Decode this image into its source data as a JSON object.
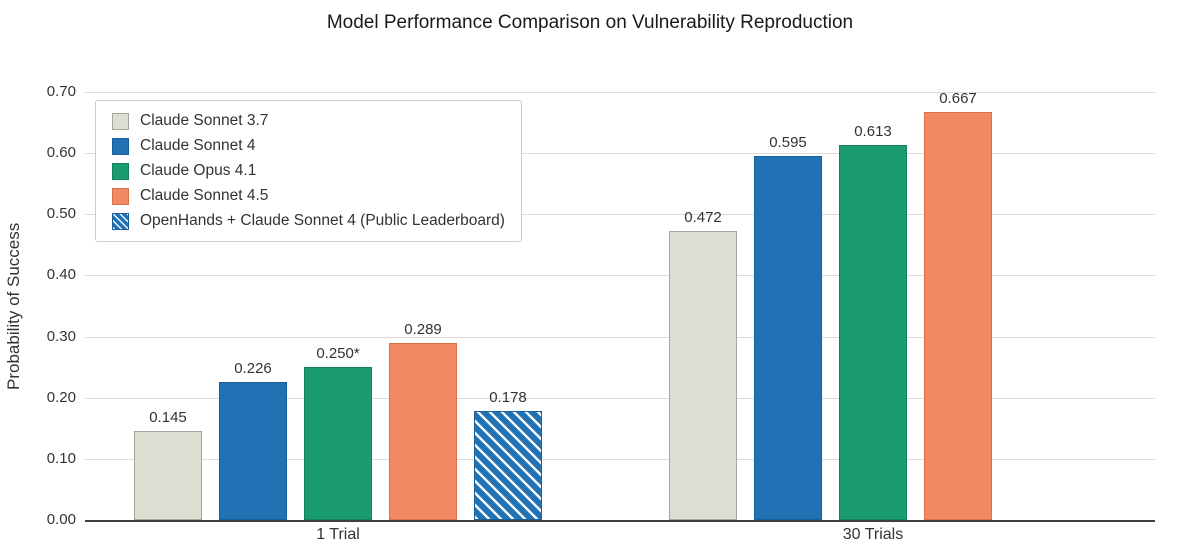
{
  "title": "Model Performance Comparison on Vulnerability Reproduction",
  "ylabel": "Probability of Success",
  "chart_data": {
    "type": "bar",
    "categories": [
      "1 Trial",
      "30 Trials"
    ],
    "yticks": [
      "0.00",
      "0.10",
      "0.20",
      "0.30",
      "0.40",
      "0.50",
      "0.60",
      "0.70"
    ],
    "ylim": [
      0,
      0.7
    ],
    "grid": true,
    "legend_position": "upper left",
    "series": [
      {
        "name": "Claude Sonnet 3.7",
        "color": "#ddddd2",
        "edge": "#a6a69a",
        "hatch": false,
        "values": [
          0.145,
          0.472
        ],
        "labels": [
          "0.145",
          "0.472"
        ]
      },
      {
        "name": "Claude Sonnet 4",
        "color": "#2171b5",
        "edge": "#1b5f99",
        "hatch": false,
        "values": [
          0.226,
          0.595
        ],
        "labels": [
          "0.226",
          "0.595"
        ]
      },
      {
        "name": "Claude Opus 4.1",
        "color": "#1a9c6e",
        "edge": "#15835c",
        "hatch": false,
        "values": [
          0.25,
          0.613
        ],
        "labels": [
          "0.250*",
          "0.613"
        ]
      },
      {
        "name": "Claude Sonnet 4.5",
        "color": "#f08a62",
        "edge": "#d97047",
        "hatch": false,
        "values": [
          0.289,
          0.667
        ],
        "labels": [
          "0.289",
          "0.667"
        ]
      },
      {
        "name": "OpenHands + Claude Sonnet 4 (Public Leaderboard)",
        "color": "#2171b5",
        "edge": "#1b5f99",
        "hatch": true,
        "values": [
          0.178,
          null
        ],
        "labels": [
          "0.178",
          null
        ]
      }
    ]
  }
}
